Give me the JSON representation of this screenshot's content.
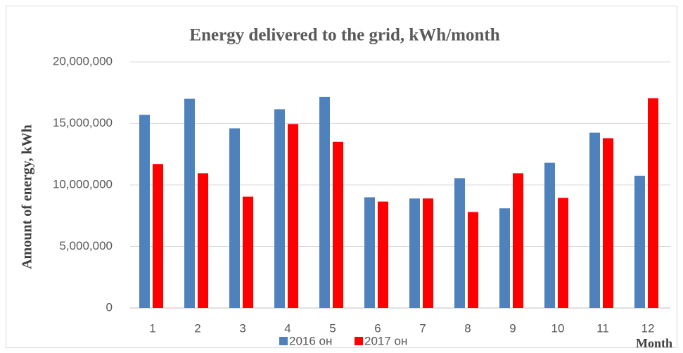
{
  "chart_data": {
    "type": "bar",
    "title": "Energy delivered to the grid, kWh/month",
    "x_label": "Month",
    "y_label": "Amount of energy, kWh",
    "categories": [
      "1",
      "2",
      "3",
      "4",
      "5",
      "6",
      "7",
      "8",
      "9",
      "10",
      "11",
      "12"
    ],
    "series": [
      {
        "name": "2016 он",
        "color": "#4f81bd",
        "values": [
          15700000,
          17000000,
          14600000,
          16150000,
          17150000,
          9000000,
          8900000,
          10550000,
          8100000,
          11800000,
          14250000,
          10750000
        ]
      },
      {
        "name": "2017 он",
        "color": "#ff0000",
        "values": [
          11700000,
          10950000,
          9050000,
          14950000,
          13500000,
          8650000,
          8900000,
          7800000,
          10950000,
          8950000,
          13800000,
          17050000
        ]
      }
    ],
    "ylim": [
      0,
      20000000
    ],
    "yticks": [
      0,
      {
        "value": 5000000,
        "label": "5,000,000"
      },
      {
        "value": 10000000,
        "label": "10,000,000"
      },
      {
        "value": 15000000,
        "label": "15,000,000"
      },
      {
        "value": 20000000,
        "label": "20,000,000"
      }
    ],
    "grid": true,
    "legend": "bottom"
  }
}
